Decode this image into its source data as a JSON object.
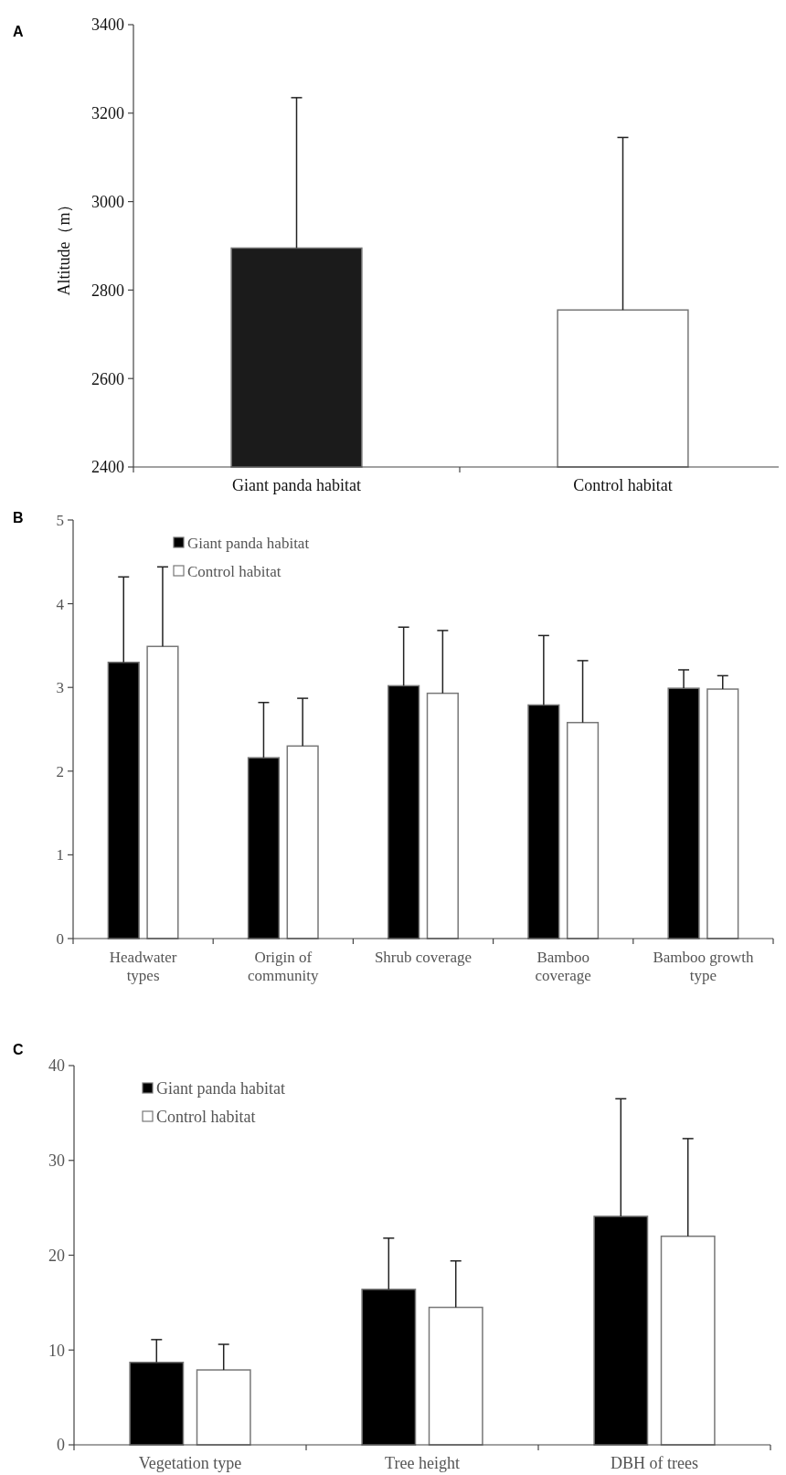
{
  "chart_data": [
    {
      "type": "bar",
      "annotations": [
        "A"
      ],
      "ylabel": "Altitude（m）",
      "categories": [
        "Giant panda habitat",
        "Control habitat"
      ],
      "values": [
        2895,
        2755
      ],
      "errors": [
        [
          2895,
          3235
        ],
        [
          2755,
          3145
        ]
      ],
      "colors": [
        "#1b1b1b",
        "#ffffff"
      ],
      "ylim": [
        2400,
        3400
      ],
      "yticks": [
        2400,
        2600,
        2800,
        3000,
        3200,
        3400
      ],
      "legend": false
    },
    {
      "type": "bar",
      "annotations": [
        "B"
      ],
      "categories": [
        "Headwater types",
        "Origin of community",
        "Shrub coverage",
        "Bamboo coverage",
        "Bamboo growth type"
      ],
      "series": [
        {
          "name": "Giant panda habitat",
          "color": "#000000",
          "values": [
            3.3,
            2.16,
            3.02,
            2.79,
            2.99
          ],
          "errors": [
            [
              3.3,
              4.32
            ],
            [
              2.16,
              2.82
            ],
            [
              3.02,
              3.72
            ],
            [
              2.79,
              3.62
            ],
            [
              2.99,
              3.21
            ]
          ]
        },
        {
          "name": "Control habitat",
          "color": "#ffffff",
          "values": [
            3.49,
            2.3,
            2.93,
            2.58,
            2.98
          ],
          "errors": [
            [
              3.49,
              4.44
            ],
            [
              2.3,
              2.87
            ],
            [
              2.93,
              3.68
            ],
            [
              2.58,
              3.32
            ],
            [
              2.98,
              3.14
            ]
          ]
        }
      ],
      "ylim": [
        0,
        5
      ],
      "yticks": [
        0,
        1,
        2,
        3,
        4,
        5
      ],
      "legend": "top left"
    },
    {
      "type": "bar",
      "annotations": [
        "C"
      ],
      "categories": [
        "Vegetation type",
        "Tree height",
        "DBH of trees"
      ],
      "series": [
        {
          "name": "Giant panda habitat",
          "color": "#000000",
          "values": [
            8.7,
            16.4,
            24.1
          ],
          "errors": [
            [
              8.7,
              11.1
            ],
            [
              16.4,
              21.8
            ],
            [
              24.1,
              36.5
            ]
          ]
        },
        {
          "name": "Control habitat",
          "color": "#ffffff",
          "values": [
            7.9,
            14.5,
            22.0
          ],
          "errors": [
            [
              7.9,
              10.6
            ],
            [
              14.5,
              19.4
            ],
            [
              22.0,
              32.3
            ]
          ]
        }
      ],
      "ylim": [
        0,
        40
      ],
      "yticks": [
        0,
        10,
        20,
        30,
        40
      ],
      "legend": "top left"
    }
  ]
}
